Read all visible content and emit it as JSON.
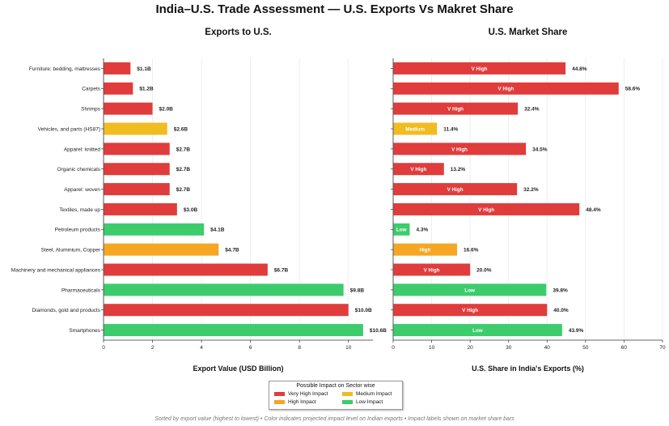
{
  "title": "India–U.S. Trade Assessment — U.S. Exports Vs Makret Share",
  "footer": "Sorted by export value (highest to lowest) • Color indicates projected impact level on Indian exports • Impact labels shown on market share bars",
  "colors": {
    "very_high": "#e03c3c",
    "high": "#f5a623",
    "medium": "#f0bc22",
    "low": "#3ccc6c"
  },
  "legend": {
    "title": "Possible Impact on Sector wise",
    "items": [
      {
        "label": "Very High Impact",
        "color": "#e03c3c"
      },
      {
        "label": "Medium Impact",
        "color": "#f0bc22"
      },
      {
        "label": "High Impact",
        "color": "#f5a623"
      },
      {
        "label": "Low Impact",
        "color": "#3ccc6c"
      }
    ]
  },
  "chart_data": [
    {
      "type": "bar",
      "orientation": "horizontal",
      "title": "Exports to U.S.",
      "xlabel": "Export Value (USD Billion)",
      "xlim": [
        0,
        11
      ],
      "xticks": [
        "0",
        "2",
        "4",
        "6",
        "8",
        "10"
      ],
      "grid": true,
      "categories": [
        "Furniture: bedding, mattresses",
        "Carpets",
        "Shrimps",
        "Vehicles, and parts (HS87)",
        "Apparel: knitted",
        "Organic chemicals",
        "Apparel: woven",
        "Textiles, made up",
        "Petroleum products",
        "Steel, Aluminium, Copper",
        "Machinery and mechanical appliances",
        "Pharmaceuticals",
        "Diamonds, gold and products",
        "Smartphones"
      ],
      "values": [
        1.1,
        1.2,
        2.0,
        2.6,
        2.7,
        2.7,
        2.7,
        3.0,
        4.1,
        4.7,
        6.7,
        9.8,
        10.0,
        10.6
      ],
      "data_labels": [
        "$1.1B",
        "$1.2B",
        "$2.0B",
        "$2.6B",
        "$2.7B",
        "$2.7B",
        "$2.7B",
        "$3.0B",
        "$4.1B",
        "$4.7B",
        "$6.7B",
        "$9.8B",
        "$10.0B",
        "$10.6B"
      ],
      "impact": [
        "very_high",
        "very_high",
        "very_high",
        "medium",
        "very_high",
        "very_high",
        "very_high",
        "very_high",
        "low",
        "high",
        "very_high",
        "low",
        "very_high",
        "low"
      ]
    },
    {
      "type": "bar",
      "orientation": "horizontal",
      "title": "U.S. Market Share",
      "xlabel": "U.S. Share in India's Exports (%)",
      "xlim": [
        0,
        70
      ],
      "xticks": [
        "0",
        "10",
        "20",
        "30",
        "40",
        "50",
        "60",
        "70"
      ],
      "grid": true,
      "categories": [
        "Furniture: bedding, mattresses",
        "Carpets",
        "Shrimps",
        "Vehicles, and parts (HS87)",
        "Apparel: knitted",
        "Organic chemicals",
        "Apparel: woven",
        "Textiles, made up",
        "Petroleum products",
        "Steel, Aluminium, Copper",
        "Machinery and mechanical appliances",
        "Pharmaceuticals",
        "Diamonds, gold and products",
        "Smartphones"
      ],
      "values": [
        44.8,
        58.6,
        32.4,
        11.4,
        34.5,
        13.2,
        32.2,
        48.4,
        4.3,
        16.6,
        20.0,
        39.8,
        40.0,
        43.9
      ],
      "data_labels": [
        "44.8%",
        "58.6%",
        "32.4%",
        "11.4%",
        "34.5%",
        "13.2%",
        "32.2%",
        "48.4%",
        "4.3%",
        "16.6%",
        "20.0%",
        "39.8%",
        "40.0%",
        "43.9%"
      ],
      "bar_labels": [
        "V High",
        "V High",
        "V High",
        "Medium",
        "V High",
        "V High",
        "V High",
        "V High",
        "Low",
        "High",
        "V High",
        "Low",
        "V High",
        "Low"
      ],
      "impact": [
        "very_high",
        "very_high",
        "very_high",
        "medium",
        "very_high",
        "very_high",
        "very_high",
        "very_high",
        "low",
        "high",
        "very_high",
        "low",
        "very_high",
        "low"
      ]
    }
  ]
}
